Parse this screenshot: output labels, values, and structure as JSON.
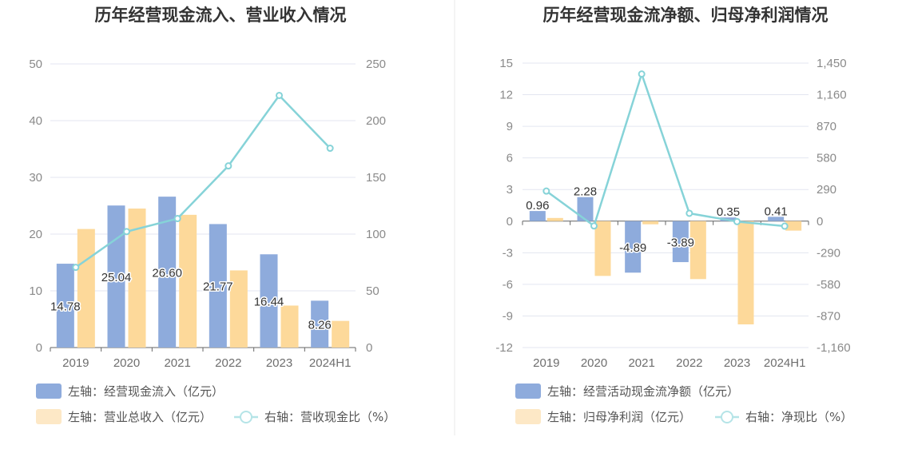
{
  "colors": {
    "left_bar": "#8eabdc",
    "right_bar": "#fdd99a",
    "line": "#86d3d8",
    "grid": "#e3e6f0",
    "axis": "#666666",
    "divider": "#e8e8e8"
  },
  "chart_data": [
    {
      "type": "bar",
      "title": "历年经营现金流入、营业收入情况",
      "categories": [
        "2019",
        "2020",
        "2021",
        "2022",
        "2023",
        "2024H1"
      ],
      "left_axis": {
        "min": 0,
        "max": 50,
        "ticks": [
          "0",
          "10",
          "20",
          "30",
          "40",
          "50"
        ]
      },
      "right_axis": {
        "min": 0,
        "max": 250,
        "ticks": [
          "0",
          "50",
          "100",
          "150",
          "200",
          "250"
        ]
      },
      "series": [
        {
          "name": "左轴：经营现金流入（亿元）",
          "kind": "bar",
          "axis": "left",
          "values": [
            14.78,
            25.04,
            26.6,
            21.77,
            16.44,
            8.26
          ],
          "labels": [
            "14.78",
            "25.04",
            "26.60",
            "21.77",
            "16.44",
            "8.26"
          ]
        },
        {
          "name": "左轴：营业总收入（亿元）",
          "kind": "bar",
          "axis": "left",
          "values": [
            20.9,
            24.5,
            23.4,
            13.6,
            7.4,
            4.7
          ]
        },
        {
          "name": "右轴：营收现金比（%）",
          "kind": "line",
          "axis": "right",
          "values": [
            70.7,
            102.2,
            113.7,
            160.1,
            222.2,
            175.7
          ]
        }
      ],
      "grid": true,
      "legend_position": "bottom-left"
    },
    {
      "type": "bar",
      "title": "历年经营现金流净额、归母净利润情况",
      "categories": [
        "2019",
        "2020",
        "2021",
        "2022",
        "2023",
        "2024H1"
      ],
      "left_axis": {
        "min": -12,
        "max": 15,
        "ticks": [
          "-12",
          "-9",
          "-6",
          "-3",
          "0",
          "3",
          "6",
          "9",
          "12",
          "15"
        ]
      },
      "right_axis": {
        "min": -1160,
        "max": 1450,
        "ticks": [
          "-1,160",
          "-870",
          "-580",
          "-290",
          "0",
          "290",
          "580",
          "870",
          "1,160",
          "1,450"
        ]
      },
      "series": [
        {
          "name": "左轴：经营活动现金流净额（亿元）",
          "kind": "bar",
          "axis": "left",
          "values": [
            0.96,
            2.28,
            -4.89,
            -3.89,
            0.35,
            0.41
          ],
          "labels": [
            "0.96",
            "2.28",
            "-4.89",
            "-3.89",
            "0.35",
            "0.41"
          ]
        },
        {
          "name": "左轴：归母净利润（亿元）",
          "kind": "bar",
          "axis": "left",
          "values": [
            0.3,
            -5.2,
            -0.3,
            -5.5,
            -9.8,
            -0.9
          ]
        },
        {
          "name": "右轴：净现比（%）",
          "kind": "line",
          "axis": "right",
          "values": [
            276,
            -44,
            1350,
            72,
            -4,
            -46
          ]
        }
      ],
      "grid": true,
      "legend_position": "bottom-left"
    }
  ]
}
